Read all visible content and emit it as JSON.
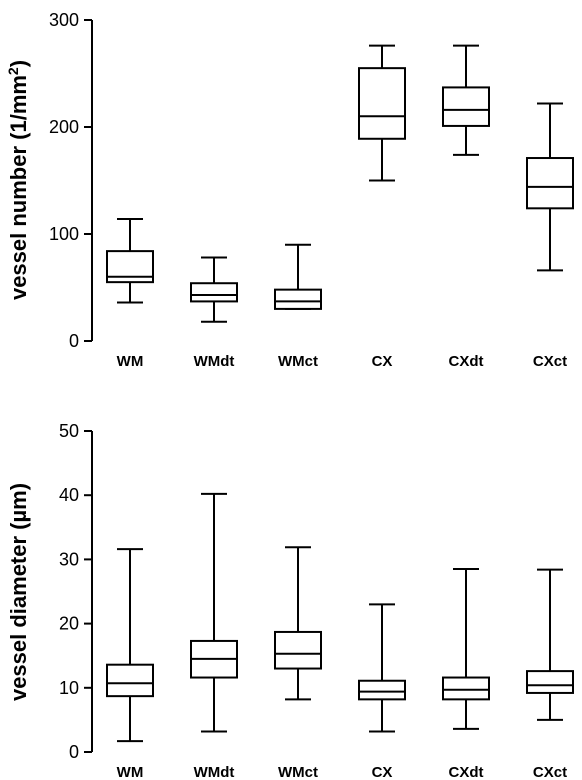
{
  "chart_data": [
    {
      "type": "box",
      "ylabel": "vessel number (1/mm²)",
      "ylabel_main": "vessel number (1/mm",
      "ylabel_sup": "2",
      "ylabel_end": ")",
      "ylim": [
        0,
        300
      ],
      "yticks": [
        0,
        100,
        200,
        300
      ],
      "categories": [
        "WM",
        "WMdt",
        "WMct",
        "CX",
        "CXdt",
        "CXct"
      ],
      "boxes": [
        {
          "min": 36,
          "q1": 55,
          "median": 60,
          "q3": 84,
          "max": 114
        },
        {
          "min": 18,
          "q1": 37,
          "median": 43,
          "q3": 54,
          "max": 78
        },
        {
          "min": 30,
          "q1": 30,
          "median": 37,
          "q3": 48,
          "max": 90
        },
        {
          "min": 150,
          "q1": 189,
          "median": 210,
          "q3": 255,
          "max": 276
        },
        {
          "min": 174,
          "q1": 201,
          "median": 216,
          "q3": 237,
          "max": 276
        },
        {
          "min": 66,
          "q1": 124,
          "median": 144,
          "q3": 171,
          "max": 222
        }
      ]
    },
    {
      "type": "box",
      "ylabel": "vessel diameter (µm)",
      "ylim": [
        0,
        50
      ],
      "yticks": [
        0,
        10,
        20,
        30,
        40,
        50
      ],
      "categories": [
        "WM",
        "WMdt",
        "WMct",
        "CX",
        "CXdt",
        "CXct"
      ],
      "boxes": [
        {
          "min": 1.7,
          "q1": 8.7,
          "median": 10.7,
          "q3": 13.6,
          "max": 31.6
        },
        {
          "min": 3.2,
          "q1": 11.6,
          "median": 14.5,
          "q3": 17.3,
          "max": 40.2
        },
        {
          "min": 8.2,
          "q1": 13.0,
          "median": 15.3,
          "q3": 18.7,
          "max": 31.9
        },
        {
          "min": 3.2,
          "q1": 8.2,
          "median": 9.4,
          "q3": 11.1,
          "max": 23.0
        },
        {
          "min": 3.6,
          "q1": 8.2,
          "median": 9.7,
          "q3": 11.6,
          "max": 28.5
        },
        {
          "min": 5.0,
          "q1": 9.2,
          "median": 10.4,
          "q3": 12.6,
          "max": 28.4
        }
      ]
    }
  ]
}
